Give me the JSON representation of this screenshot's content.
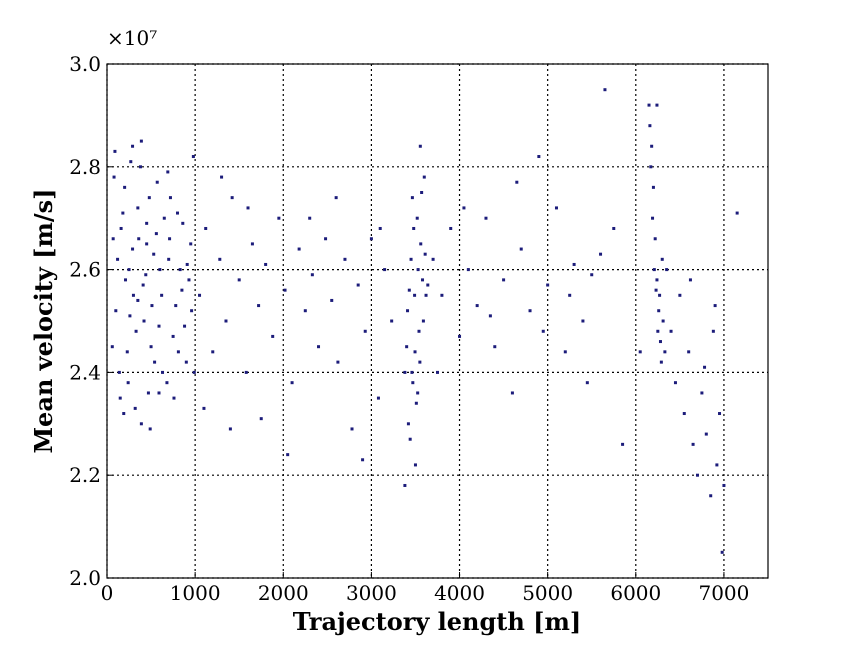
{
  "chart_data": {
    "type": "scatter",
    "x_label": "Trajectory length  [m]",
    "y_label": "Mean velocity  [m/s]",
    "y_offset_label": "×10⁷",
    "xlim": [
      0,
      7500
    ],
    "xticks": [
      0,
      1000,
      2000,
      3000,
      4000,
      5000,
      6000,
      7000
    ],
    "ylim": [
      2.0,
      3.0
    ],
    "yticks": [
      {
        "value": 2.0,
        "label": "2.0"
      },
      2.2,
      2.4,
      2.6,
      2.8,
      {
        "value": 3.0,
        "label": "3.0"
      }
    ],
    "grid": true,
    "color": "#1c1c7a",
    "x": [
      60,
      120,
      180,
      240,
      300,
      360,
      420,
      480,
      540,
      600,
      80,
      150,
      210,
      270,
      330,
      390,
      450,
      510,
      570,
      630,
      100,
      160,
      230,
      290,
      350,
      410,
      470,
      530,
      590,
      650,
      70,
      140,
      200,
      260,
      320,
      380,
      440,
      500,
      560,
      620,
      700,
      750,
      800,
      850,
      900,
      950,
      680,
      720,
      780,
      830,
      880,
      930,
      980,
      710,
      760,
      810,
      860,
      910,
      960,
      990,
      90,
      190,
      290,
      390,
      490,
      590,
      690,
      250,
      350,
      450,
      1050,
      1120,
      1200,
      1280,
      1350,
      1420,
      1500,
      1580,
      1650,
      1720,
      1800,
      1880,
      1950,
      2020,
      2100,
      2180,
      2250,
      2330,
      2400,
      2480,
      2550,
      2620,
      2700,
      2780,
      2850,
      2930,
      3000,
      3080,
      3150,
      3230,
      1100,
      1300,
      1400,
      1600,
      1750,
      2050,
      2300,
      2600,
      2900,
      3100,
      3400,
      3420,
      3450,
      3470,
      3490,
      3500,
      3520,
      3540,
      3560,
      3580,
      3410,
      3440,
      3460,
      3480,
      3510,
      3530,
      3550,
      3570,
      3590,
      3610,
      3380,
      3430,
      3465,
      3495,
      3525,
      3555,
      3600,
      3620,
      3640,
      3380,
      3700,
      3800,
      3900,
      4000,
      4100,
      4200,
      4300,
      4400,
      4500,
      4600,
      4700,
      4800,
      4900,
      5000,
      5100,
      5200,
      5300,
      5400,
      5500,
      5600,
      3750,
      4050,
      4350,
      4650,
      4950,
      5250,
      5450,
      5650,
      5750,
      5850,
      6150,
      6180,
      6200,
      6220,
      6240,
      6260,
      6280,
      6300,
      6190,
      6230,
      6170,
      6210,
      6250,
      6270,
      6290,
      6310,
      6330,
      6350,
      6160,
      6240,
      6400,
      6450,
      6500,
      6550,
      6600,
      6650,
      6700,
      6750,
      6800,
      6850,
      6900,
      6950,
      6980,
      7000,
      7150,
      6920,
      6880,
      6780,
      6620,
      6050
    ],
    "values": [
      2.45,
      2.62,
      2.71,
      2.38,
      2.55,
      2.66,
      2.5,
      2.74,
      2.42,
      2.6,
      2.78,
      2.35,
      2.58,
      2.81,
      2.48,
      2.3,
      2.69,
      2.53,
      2.77,
      2.4,
      2.52,
      2.68,
      2.44,
      2.64,
      2.72,
      2.57,
      2.36,
      2.63,
      2.49,
      2.7,
      2.66,
      2.4,
      2.76,
      2.51,
      2.33,
      2.8,
      2.59,
      2.45,
      2.67,
      2.55,
      2.62,
      2.47,
      2.71,
      2.56,
      2.42,
      2.65,
      2.38,
      2.74,
      2.53,
      2.6,
      2.49,
      2.58,
      2.82,
      2.66,
      2.35,
      2.44,
      2.69,
      2.61,
      2.52,
      2.4,
      2.83,
      2.32,
      2.84,
      2.85,
      2.29,
      2.36,
      2.79,
      2.6,
      2.54,
      2.65,
      2.55,
      2.68,
      2.44,
      2.62,
      2.5,
      2.74,
      2.58,
      2.4,
      2.65,
      2.53,
      2.61,
      2.47,
      2.7,
      2.56,
      2.38,
      2.64,
      2.52,
      2.59,
      2.45,
      2.66,
      2.54,
      2.42,
      2.62,
      2.29,
      2.57,
      2.48,
      2.66,
      2.35,
      2.6,
      2.5,
      2.33,
      2.78,
      2.29,
      2.72,
      2.31,
      2.24,
      2.7,
      2.74,
      2.23,
      2.68,
      2.45,
      2.3,
      2.62,
      2.38,
      2.55,
      2.22,
      2.7,
      2.48,
      2.65,
      2.58,
      2.52,
      2.27,
      2.4,
      2.68,
      2.34,
      2.6,
      2.42,
      2.75,
      2.5,
      2.63,
      2.18,
      2.56,
      2.74,
      2.44,
      2.36,
      2.84,
      2.78,
      2.55,
      2.57,
      2.4,
      2.62,
      2.55,
      2.68,
      2.47,
      2.6,
      2.53,
      2.7,
      2.45,
      2.58,
      2.36,
      2.64,
      2.52,
      2.82,
      2.57,
      2.72,
      2.44,
      2.61,
      2.5,
      2.59,
      2.63,
      2.4,
      2.72,
      2.51,
      2.77,
      2.48,
      2.55,
      2.38,
      2.95,
      2.68,
      2.26,
      2.92,
      2.84,
      2.76,
      2.66,
      2.58,
      2.52,
      2.46,
      2.62,
      2.7,
      2.56,
      2.8,
      2.6,
      2.48,
      2.55,
      2.42,
      2.5,
      2.44,
      2.6,
      2.88,
      2.92,
      2.48,
      2.38,
      2.55,
      2.32,
      2.44,
      2.26,
      2.2,
      2.36,
      2.28,
      2.16,
      2.53,
      2.32,
      2.05,
      2.18,
      2.71,
      2.22,
      2.48,
      2.41,
      2.58,
      2.44
    ]
  }
}
